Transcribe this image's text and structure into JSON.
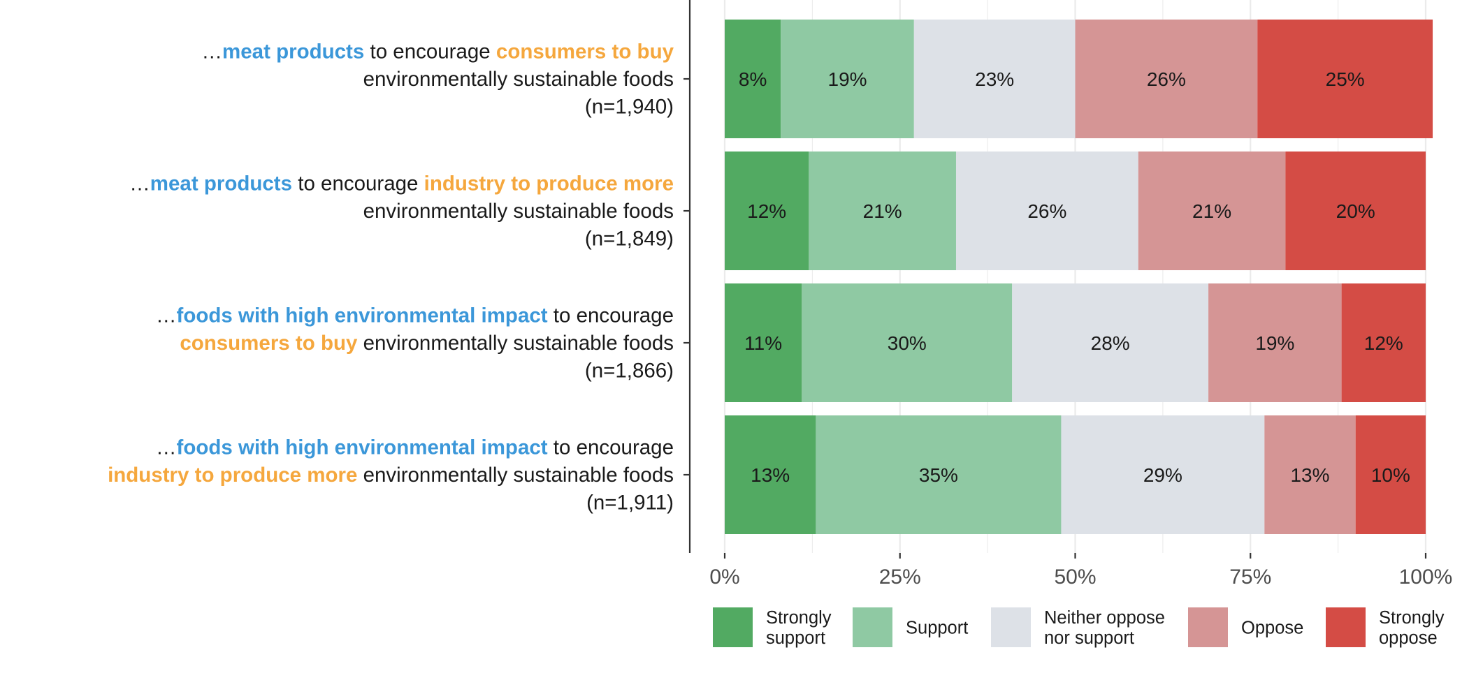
{
  "colors": {
    "highlight_blue": "#3b97d9",
    "highlight_orange": "#f5a73d",
    "text": "#1a1a1a",
    "axis": "#333333",
    "grid": "#ebebeb",
    "tick_text": "#4d4d4d"
  },
  "chart_data": {
    "type": "bar",
    "orientation": "horizontal",
    "stacked": true,
    "categories": [
      {
        "lines": [
          [
            {
              "text": "…",
              "style": "plain"
            },
            {
              "text": "meat products",
              "style": "blue"
            },
            {
              "text": " to encourage ",
              "style": "plain"
            },
            {
              "text": "consumers to buy",
              "style": "orange"
            }
          ],
          [
            {
              "text": "environmentally sustainable foods",
              "style": "plain"
            }
          ],
          [
            {
              "text": "(n=1,940)",
              "style": "plain"
            }
          ]
        ]
      },
      {
        "lines": [
          [
            {
              "text": "…",
              "style": "plain"
            },
            {
              "text": "meat products",
              "style": "blue"
            },
            {
              "text": " to encourage ",
              "style": "plain"
            },
            {
              "text": "industry to produce more",
              "style": "orange"
            }
          ],
          [
            {
              "text": "environmentally sustainable foods",
              "style": "plain"
            }
          ],
          [
            {
              "text": "(n=1,849)",
              "style": "plain"
            }
          ]
        ]
      },
      {
        "lines": [
          [
            {
              "text": "…",
              "style": "plain"
            },
            {
              "text": "foods with high environmental impact",
              "style": "blue"
            },
            {
              "text": " to encourage",
              "style": "plain"
            }
          ],
          [
            {
              "text": "consumers to buy",
              "style": "orange"
            },
            {
              "text": " environmentally sustainable foods",
              "style": "plain"
            }
          ],
          [
            {
              "text": "(n=1,866)",
              "style": "plain"
            }
          ]
        ]
      },
      {
        "lines": [
          [
            {
              "text": "…",
              "style": "plain"
            },
            {
              "text": "foods with high environmental impact",
              "style": "blue"
            },
            {
              "text": " to encourage",
              "style": "plain"
            }
          ],
          [
            {
              "text": "industry to produce more",
              "style": "orange"
            },
            {
              "text": " environmentally sustainable foods",
              "style": "plain"
            }
          ],
          [
            {
              "text": "(n=1,911)",
              "style": "plain"
            }
          ]
        ]
      }
    ],
    "series": [
      {
        "name": "Strongly support",
        "legend_lines": [
          "Strongly",
          "support"
        ],
        "color": "#52aa62",
        "values": [
          8,
          12,
          11,
          13
        ],
        "labels": [
          "8%",
          "12%",
          "11%",
          "13%"
        ]
      },
      {
        "name": "Support",
        "legend_lines": [
          "Support"
        ],
        "color": "#8fc9a3",
        "values": [
          19,
          21,
          30,
          35
        ],
        "labels": [
          "19%",
          "21%",
          "30%",
          "35%"
        ]
      },
      {
        "name": "Neither oppose nor support",
        "legend_lines": [
          "Neither oppose",
          "nor support"
        ],
        "color": "#dde1e7",
        "values": [
          23,
          26,
          28,
          29
        ],
        "labels": [
          "23%",
          "26%",
          "28%",
          "29%"
        ]
      },
      {
        "name": "Oppose",
        "legend_lines": [
          "Oppose"
        ],
        "color": "#d59595",
        "values": [
          26,
          21,
          19,
          13
        ],
        "labels": [
          "26%",
          "21%",
          "19%",
          "13%"
        ]
      },
      {
        "name": "Strongly oppose",
        "legend_lines": [
          "Strongly",
          "oppose"
        ],
        "color": "#d44c45",
        "values": [
          25,
          20,
          12,
          10
        ],
        "labels": [
          "25%",
          "20%",
          "12%",
          "10%"
        ]
      }
    ],
    "xlim": [
      0,
      100
    ],
    "x_ticks": [
      0,
      25,
      50,
      75,
      100
    ],
    "x_tick_labels": [
      "0%",
      "25%",
      "50%",
      "75%",
      "100%"
    ],
    "grid": true,
    "legend_position": "bottom",
    "title": "",
    "xlabel": "",
    "ylabel": ""
  }
}
